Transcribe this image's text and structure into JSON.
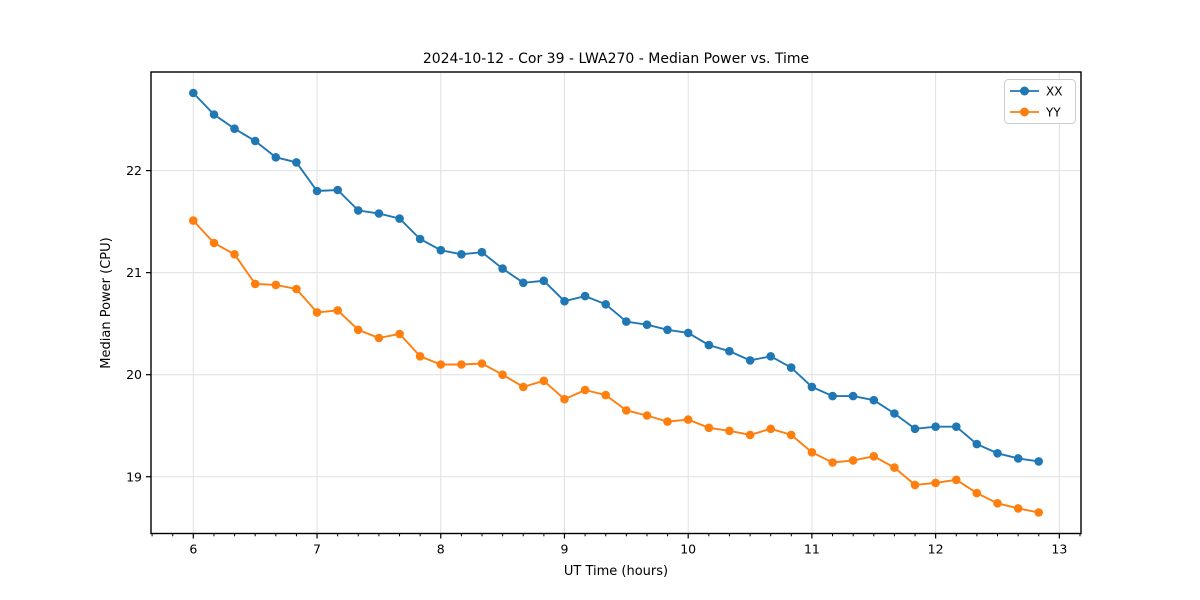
{
  "chart_data": {
    "type": "line",
    "title": "2024-10-12 - Cor 39 - LWA270 - Median Power vs. Time",
    "xlabel": "UT Time (hours)",
    "ylabel": "Median Power (CPU)",
    "grid": true,
    "legend_position": "upper right",
    "xlim": [
      5.658,
      13.175
    ],
    "ylim": [
      18.444,
      22.966
    ],
    "xticks": [
      6,
      7,
      8,
      9,
      10,
      11,
      12,
      13
    ],
    "yticks": [
      19,
      20,
      21,
      22
    ],
    "x_minor_step": 0.16667,
    "x": [
      6.0,
      6.167,
      6.333,
      6.5,
      6.667,
      6.833,
      7.0,
      7.167,
      7.333,
      7.5,
      7.667,
      7.833,
      8.0,
      8.167,
      8.333,
      8.5,
      8.667,
      8.833,
      9.0,
      9.167,
      9.333,
      9.5,
      9.667,
      9.833,
      10.0,
      10.167,
      10.333,
      10.5,
      10.667,
      10.833,
      11.0,
      11.167,
      11.333,
      11.5,
      11.667,
      11.833,
      12.0,
      12.167,
      12.333,
      12.5,
      12.667,
      12.833
    ],
    "series": [
      {
        "name": "XX",
        "color": "#1f77b4",
        "marker": "circle",
        "values": [
          22.76,
          22.55,
          22.41,
          22.29,
          22.13,
          22.08,
          21.8,
          21.81,
          21.61,
          21.58,
          21.53,
          21.33,
          21.22,
          21.18,
          21.2,
          21.04,
          20.9,
          20.92,
          20.72,
          20.77,
          20.69,
          20.52,
          20.49,
          20.44,
          20.41,
          20.29,
          20.23,
          20.14,
          20.18,
          20.07,
          19.88,
          19.79,
          19.79,
          19.75,
          19.62,
          19.47,
          19.49,
          19.49,
          19.32,
          19.23,
          19.18,
          19.15
        ]
      },
      {
        "name": "YY",
        "color": "#ff7f0e",
        "marker": "circle",
        "values": [
          21.51,
          21.29,
          21.18,
          20.89,
          20.88,
          20.84,
          20.61,
          20.63,
          20.44,
          20.36,
          20.4,
          20.18,
          20.1,
          20.1,
          20.11,
          20.0,
          19.88,
          19.94,
          19.76,
          19.85,
          19.8,
          19.65,
          19.6,
          19.54,
          19.56,
          19.48,
          19.45,
          19.41,
          19.47,
          19.41,
          19.24,
          19.14,
          19.16,
          19.2,
          19.09,
          18.92,
          18.94,
          18.97,
          18.84,
          18.74,
          18.69,
          18.65
        ]
      }
    ]
  }
}
